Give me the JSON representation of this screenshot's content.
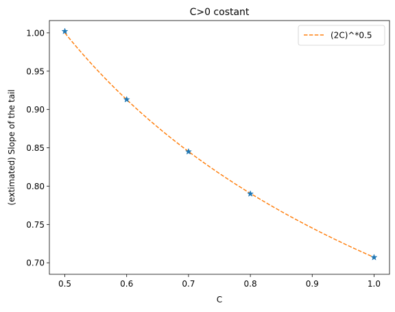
{
  "chart_data": {
    "type": "scatter",
    "title": "C>0 costant",
    "xlabel": "C",
    "ylabel": "(extimated) Slope of the tail",
    "xlim": [
      0.475,
      1.025
    ],
    "ylim": [
      0.685,
      1.016
    ],
    "xticks": [
      0.5,
      0.6,
      0.7,
      0.8,
      0.9,
      1.0
    ],
    "xtick_labels": [
      "0.5",
      "0.6",
      "0.7",
      "0.8",
      "0.9",
      "1.0"
    ],
    "yticks": [
      0.7,
      0.75,
      0.8,
      0.85,
      0.9,
      0.95,
      1.0
    ],
    "ytick_labels": [
      "0.70",
      "0.75",
      "0.80",
      "0.85",
      "0.90",
      "0.95",
      "1.00"
    ],
    "grid": false,
    "legend_position": "top-right",
    "series": [
      {
        "kind": "scatter",
        "marker": "star",
        "color": "#1f77b4",
        "x": [
          0.5,
          0.6,
          0.7,
          0.8,
          1.0
        ],
        "y": [
          1.002,
          0.913,
          0.845,
          0.79,
          0.707
        ]
      },
      {
        "kind": "line",
        "name": "(2C)^*0.5",
        "style": "dashed",
        "color": "#ff7f0e",
        "formula": "(2C)^-0.5",
        "x_range": [
          0.5,
          1.0
        ]
      }
    ]
  }
}
